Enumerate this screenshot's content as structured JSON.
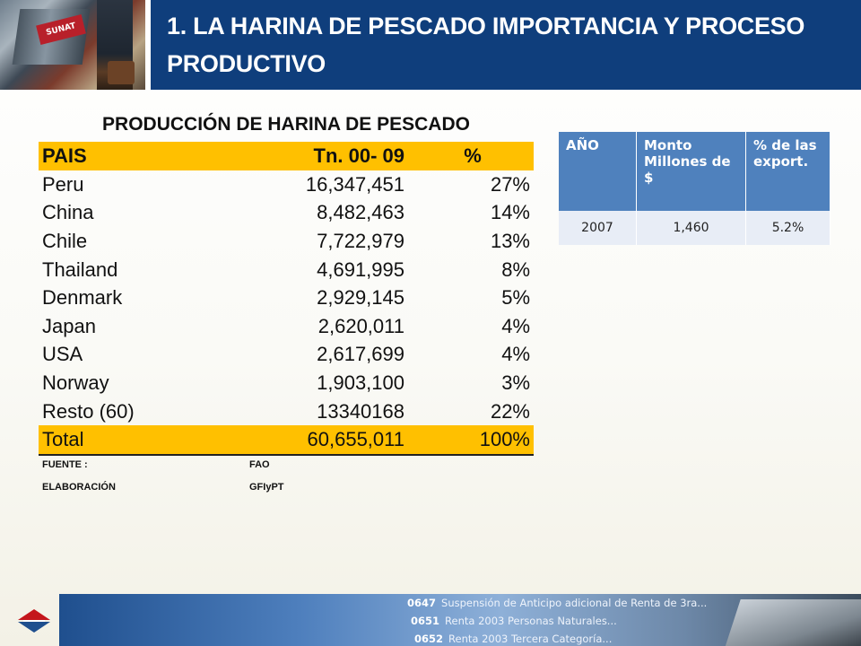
{
  "header": {
    "title": "1. LA HARINA DE PESCADO IMPORTANCIA Y PROCESO PRODUCTIVO",
    "photo_sign": "SUNAT"
  },
  "production_table": {
    "caption": "PRODUCCIÓN DE HARINA DE PESCADO",
    "headers": [
      "PAIS",
      "Tn. 00- 09",
      "%"
    ],
    "rows": [
      [
        "Peru",
        "16,347,451",
        "27%"
      ],
      [
        "China",
        "8,482,463",
        "14%"
      ],
      [
        "Chile",
        "7,722,979",
        "13%"
      ],
      [
        "Thailand",
        "4,691,995",
        "8%"
      ],
      [
        "Denmark",
        "2,929,145",
        "5%"
      ],
      [
        "Japan",
        "2,620,011",
        "4%"
      ],
      [
        "USA",
        "2,617,699",
        "4%"
      ],
      [
        "Norway",
        "1,903,100",
        "3%"
      ],
      [
        "Resto (60)",
        "13340168",
        "22%"
      ]
    ],
    "total": [
      "Total",
      "60,655,011",
      "100%"
    ],
    "source_label": "FUENTE :",
    "source_value": "FAO",
    "elaboration_label": "ELABORACIÓN",
    "elaboration_value": "GFIyPT"
  },
  "export_table": {
    "headers": [
      "AÑO",
      "Monto Millones de $",
      "% de las export."
    ],
    "rows": [
      [
        "2007",
        "1,460",
        "5.2%"
      ]
    ]
  },
  "footer": {
    "ticker": [
      {
        "code": "0647",
        "text": "Suspensión de Anticipo adicional de Renta de 3ra..."
      },
      {
        "code": "0651",
        "text": "Renta 2003 Personas Naturales..."
      },
      {
        "code": "0652",
        "text": "Renta 2003 Tercera Categoría..."
      }
    ]
  },
  "colors": {
    "header_blue": "#0f3e7c",
    "table_highlight": "#ffc000",
    "small_table_header": "#4f81bd",
    "small_table_row": "#e8edf6"
  }
}
